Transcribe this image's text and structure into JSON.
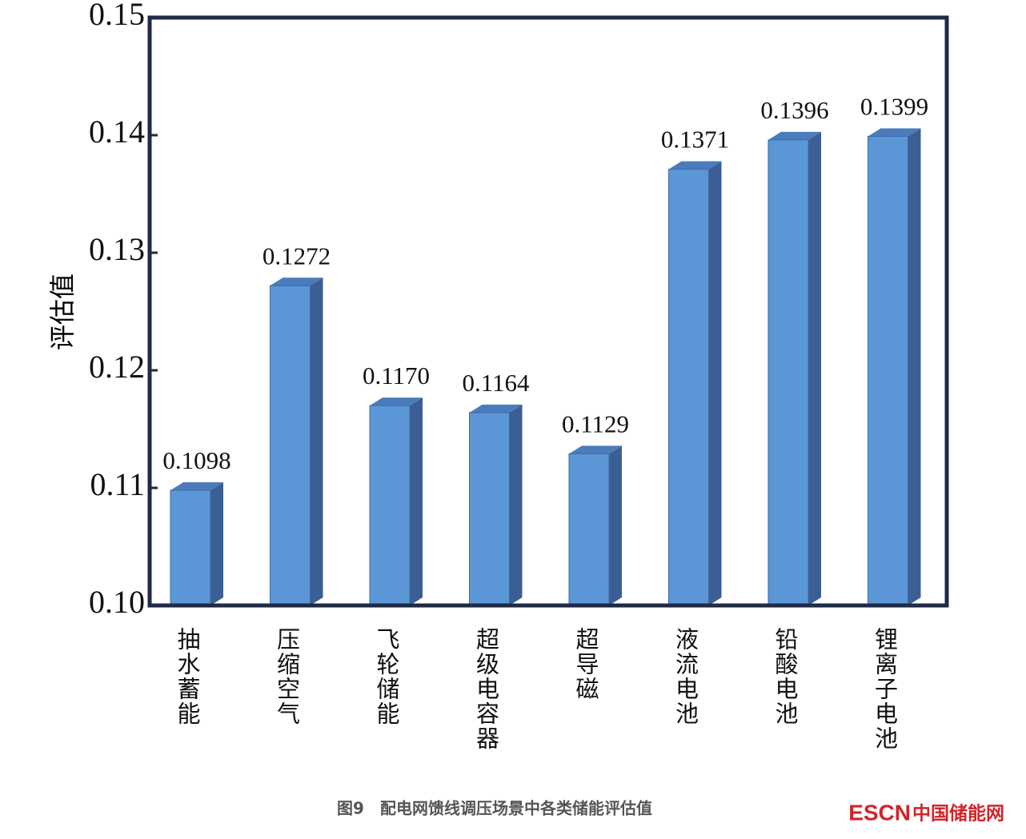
{
  "chart_data": {
    "type": "bar3d",
    "y_label": "评估值",
    "caption": "图9　配电网馈线调压场景中各类储能评估值",
    "watermark": {
      "brand": "ESCN",
      "site": "中国储能网"
    },
    "categories": [
      "抽水蓄能",
      "压缩空气",
      "飞轮储能",
      "超级电容器",
      "超导磁",
      "液流电池",
      "铅酸电池",
      "锂离子电池"
    ],
    "values": [
      0.1098,
      0.1272,
      0.117,
      0.1164,
      0.1129,
      0.1371,
      0.1396,
      0.1399
    ],
    "value_labels": [
      "0.1098",
      "0.1272",
      "0.1170",
      "0.1164",
      "0.1129",
      "0.1371",
      "0.1396",
      "0.1399"
    ],
    "color": "#5b97d7",
    "ylim": [
      0.1,
      0.15
    ],
    "yticks": [
      {
        "value": 0.1,
        "label": "0.10"
      },
      0.11,
      0.12,
      0.13,
      0.14,
      0.15
    ],
    "grid": false
  }
}
